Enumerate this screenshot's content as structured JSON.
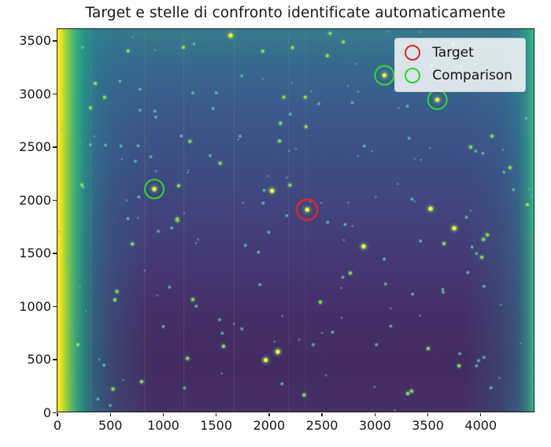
{
  "figure": {
    "title": "Target e stelle di confronto identificate automaticamente"
  },
  "legend": {
    "target_label": "Target",
    "comparison_label": "Comparison"
  },
  "colors": {
    "target_circle": "#e3242b",
    "comparison_circle": "#2bd42b",
    "legend_border": "#cccccc",
    "axis": "#1c1c1c"
  },
  "chart_data": {
    "type": "heatmap",
    "title": "Target e stelle di confronto identificate automaticamente",
    "xlabel": "",
    "ylabel": "",
    "xlim": [
      0,
      4500
    ],
    "ylim": [
      0,
      3600
    ],
    "x_ticks": [
      0,
      500,
      1000,
      1500,
      2000,
      2500,
      3000,
      3500,
      4000
    ],
    "y_ticks": [
      0,
      500,
      1000,
      1500,
      2000,
      2500,
      3000,
      3500
    ],
    "grid": false,
    "colormap": "viridis",
    "description": "Astronomical CCD frame (viridis colormap) with bright vignetting on the left edge, teal right edge, field stars, and circled target/comparison stars",
    "legend": {
      "position": "upper right",
      "entries": [
        {
          "label": "Target",
          "marker": "open-circle",
          "color": "#e3242b"
        },
        {
          "label": "Comparison",
          "marker": "open-circle",
          "color": "#2bd42b"
        }
      ]
    },
    "target_star": {
      "x": 2360,
      "y": 1900
    },
    "comparison_stars": [
      {
        "x": 915,
        "y": 2095
      },
      {
        "x": 3090,
        "y": 3165
      },
      {
        "x": 3590,
        "y": 2935
      }
    ],
    "field_stars": [
      {
        "x": 1636,
        "y": 3540,
        "b": 3
      },
      {
        "x": 2082,
        "y": 563,
        "b": 3
      },
      {
        "x": 2893,
        "y": 1555,
        "b": 3
      },
      {
        "x": 357,
        "y": 3088,
        "b": 2
      },
      {
        "x": 238,
        "y": 3429,
        "b": 1
      },
      {
        "x": 312,
        "y": 2859,
        "b": 2
      },
      {
        "x": 781,
        "y": 2837,
        "b": 1
      },
      {
        "x": 1190,
        "y": 3429,
        "b": 2
      },
      {
        "x": 312,
        "y": 2511,
        "b": 1
      },
      {
        "x": 1145,
        "y": 2126,
        "b": 2
      },
      {
        "x": 1726,
        "y": 2593,
        "b": 1
      },
      {
        "x": 543,
        "y": 1052,
        "b": 2
      },
      {
        "x": 707,
        "y": 1578,
        "b": 2
      },
      {
        "x": 193,
        "y": 630,
        "b": 2
      },
      {
        "x": 1569,
        "y": 615,
        "b": 2
      },
      {
        "x": 1741,
        "y": 778,
        "b": 1
      },
      {
        "x": 2417,
        "y": 630,
        "b": 1
      },
      {
        "x": 2484,
        "y": 1030,
        "b": 2
      },
      {
        "x": 2767,
        "y": 1304,
        "b": 2
      },
      {
        "x": 3503,
        "y": 593,
        "b": 2
      },
      {
        "x": 3794,
        "y": 430,
        "b": 2
      },
      {
        "x": 3310,
        "y": 170,
        "b": 2
      },
      {
        "x": 4009,
        "y": 1452,
        "b": 2
      },
      {
        "x": 4277,
        "y": 2296,
        "b": 2
      },
      {
        "x": 4106,
        "y": 2593,
        "b": 2
      },
      {
        "x": 4440,
        "y": 1948,
        "b": 2
      },
      {
        "x": 3741,
        "y": 3459,
        "b": 2
      },
      {
        "x": 3980,
        "y": 480,
        "b": 1
      },
      {
        "x": 4030,
        "y": 510,
        "b": 1
      },
      {
        "x": 3960,
        "y": 430,
        "b": 1
      },
      {
        "x": 2550,
        "y": 3350,
        "b": 2
      },
      {
        "x": 2700,
        "y": 3480,
        "b": 2
      },
      {
        "x": 2900,
        "y": 2500,
        "b": 1
      },
      {
        "x": 3350,
        "y": 2000,
        "b": 1
      },
      {
        "x": 1900,
        "y": 1500,
        "b": 1
      },
      {
        "x": 1000,
        "y": 800,
        "b": 1
      },
      {
        "x": 600,
        "y": 2500,
        "b": 1
      },
      {
        "x": 1500,
        "y": 3000,
        "b": 1
      },
      {
        "x": 2200,
        "y": 2800,
        "b": 1
      },
      {
        "x": 3100,
        "y": 1200,
        "b": 1
      }
    ],
    "defect_columns_x": [
      310,
      820,
      1190,
      1665,
      2180,
      2340
    ],
    "background_star_seed": 42,
    "background_star_count": 170
  }
}
